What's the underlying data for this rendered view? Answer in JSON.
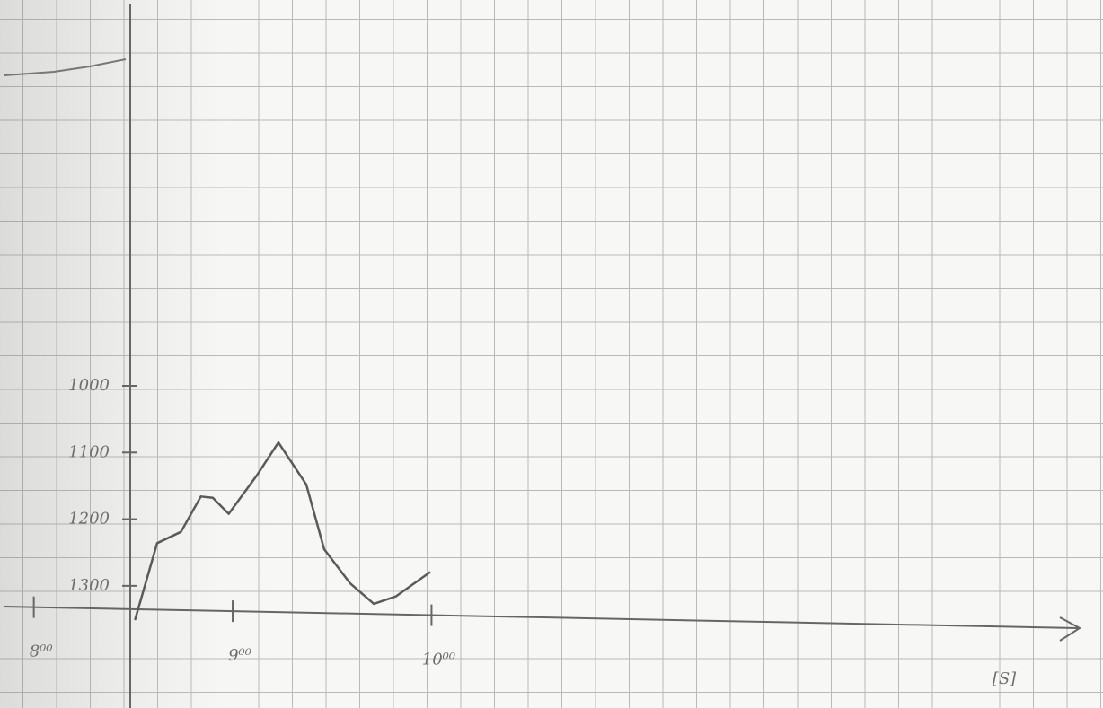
{
  "chart_data": {
    "type": "line",
    "x": [
      8.51,
      8.62,
      8.74,
      8.84,
      8.9,
      8.98,
      9.12,
      9.23,
      9.37,
      9.46,
      9.59,
      9.71,
      9.82,
      9.99
    ],
    "series": [
      {
        "color": "#5a5a5a",
        "values": [
          1350,
          1236,
          1219,
          1166,
          1168,
          1192,
          1135,
          1085,
          1148,
          1245,
          1296,
          1327,
          1316,
          1280
        ]
      }
    ],
    "xlim": [
      7.83,
      13.25
    ],
    "ylim": [
      1350,
      1000
    ],
    "xticks": [
      {
        "value": 8,
        "label": "8⁰⁰"
      },
      {
        "value": 9,
        "label": "9⁰⁰"
      },
      {
        "value": 10,
        "label": "10⁰⁰"
      }
    ],
    "yticks": [
      1000,
      1100,
      1200,
      1300
    ],
    "x_label": "[S]"
  }
}
